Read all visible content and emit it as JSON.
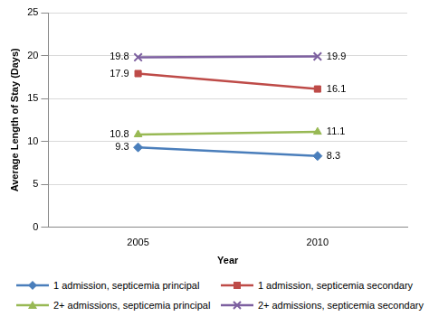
{
  "chart_data": {
    "type": "line",
    "x_label": "Year",
    "y_label": "Average Length of Stay (Days)",
    "categories": [
      "2005",
      "2010"
    ],
    "series": [
      {
        "name": "1 admission, septicemia principal",
        "color": "#4a7ebb",
        "marker": "diamond",
        "line_style": "solid",
        "values": [
          9.3,
          8.3
        ]
      },
      {
        "name": "1 admission, septicemia secondary",
        "color": "#be4b48",
        "marker": "square",
        "line_style": "solid",
        "values": [
          17.9,
          16.1
        ]
      },
      {
        "name": "2+ admissions, septicemia principal",
        "color": "#98b954",
        "marker": "triangle",
        "line_style": "solid",
        "values": [
          10.8,
          11.1
        ]
      },
      {
        "name": "2+ admissions, septicemia secondary",
        "color": "#7d60a0",
        "marker": "x",
        "line_style": "solid",
        "values": [
          19.8,
          19.9
        ]
      }
    ],
    "ylim": [
      0,
      25
    ],
    "yticks": [
      0,
      5,
      10,
      15,
      20,
      25
    ],
    "grid": true,
    "legend": "bottom",
    "data_labels": true
  }
}
